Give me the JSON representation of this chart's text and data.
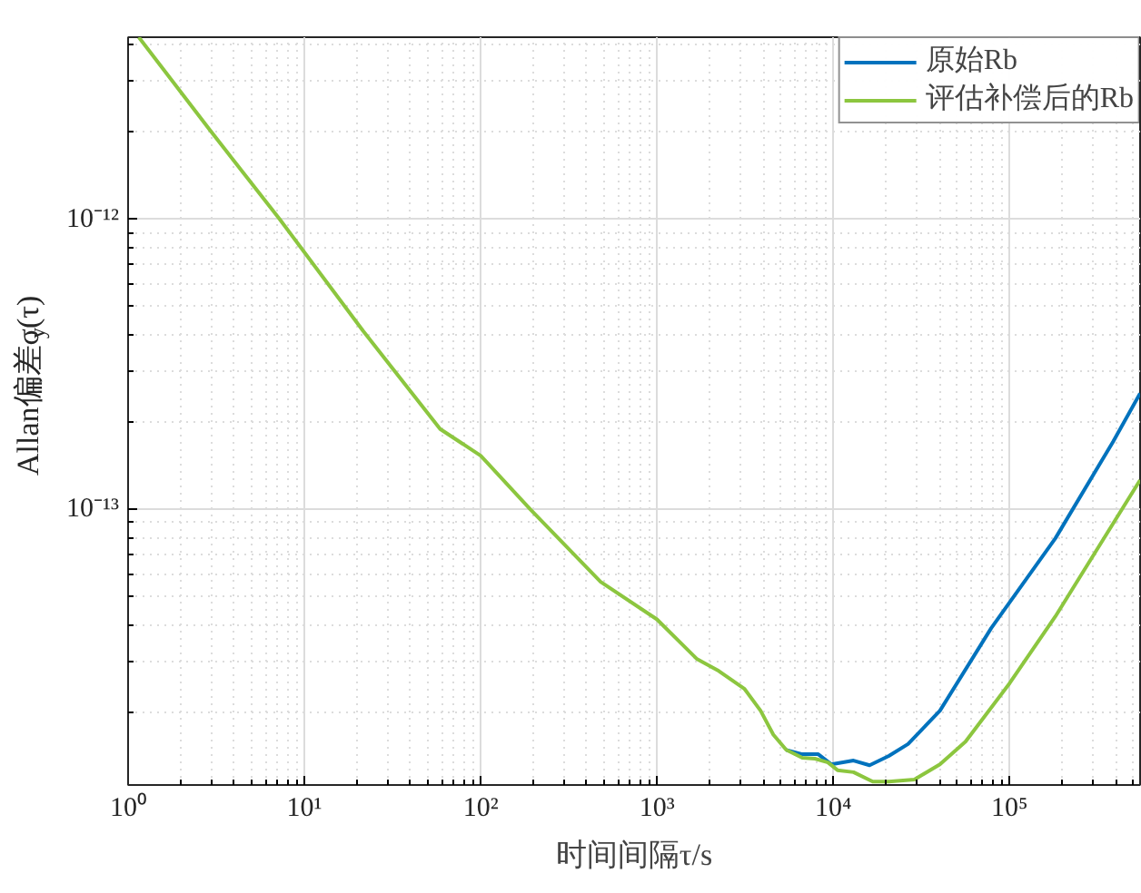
{
  "chart_data": {
    "type": "line",
    "xlabel": "时间间隔τ/s",
    "ylabel": "Allan偏差σ$_{y}$(τ)",
    "log": "xy",
    "grid": true,
    "legend": "top right",
    "line_style": "solid",
    "marker": "none",
    "xlim": [
      1,
      550000
    ],
    "ylim": [
      1.12e-14,
      4.24e-12
    ],
    "xticks": [
      {
        "value": 1,
        "label": "10⁰"
      },
      {
        "value": 10,
        "label": "10¹"
      },
      {
        "value": 100,
        "label": "10²"
      },
      {
        "value": 1000,
        "label": "10³"
      },
      {
        "value": 10000,
        "label": "10⁴"
      },
      {
        "value": 100000,
        "label": "10⁵"
      }
    ],
    "yticks": [
      {
        "value": 1e-13,
        "label": "10⁻¹³"
      },
      {
        "value": 1e-12,
        "label": "10⁻¹²"
      }
    ],
    "series": [
      {
        "name": "原始Rb",
        "color": "#0072bd",
        "x": [
          5410,
          6670,
          8220,
          9730,
          13030,
          16070,
          20650,
          26550,
          40270,
          78700,
          181970,
          386500,
          550000
        ],
        "values": [
          1.48e-14,
          1.43e-14,
          1.43e-14,
          1.32e-14,
          1.36e-14,
          1.31e-14,
          1.41e-14,
          1.55e-14,
          2.02e-14,
          3.89e-14,
          7.94e-14,
          1.71e-13,
          2.51e-13
        ]
      },
      {
        "name": "评估补偿后的Rb",
        "color": "#8cc63f",
        "x": [
          1.15,
          2.89,
          7.24,
          21.6,
          58.9,
          100,
          191,
          479,
          1000,
          1680,
          2240,
          3140,
          3870,
          4570,
          5410,
          6670,
          7870,
          9330,
          10570,
          13030,
          16750,
          20650,
          28840,
          40270,
          56230,
          100000,
          181970,
          550000
        ],
        "values": [
          4.24e-12,
          2.04e-12,
          1e-12,
          4.11e-13,
          1.89e-13,
          1.53e-13,
          1e-13,
          5.62e-14,
          4.17e-14,
          3.05e-14,
          2.77e-14,
          2.4e-14,
          2.02e-14,
          1.67e-14,
          1.48e-14,
          1.39e-14,
          1.38e-14,
          1.34e-14,
          1.26e-14,
          1.24e-14,
          1.15e-14,
          1.15e-14,
          1.17e-14,
          1.32e-14,
          1.58e-14,
          2.51e-14,
          4.27e-14,
          1.26e-13
        ]
      }
    ]
  }
}
